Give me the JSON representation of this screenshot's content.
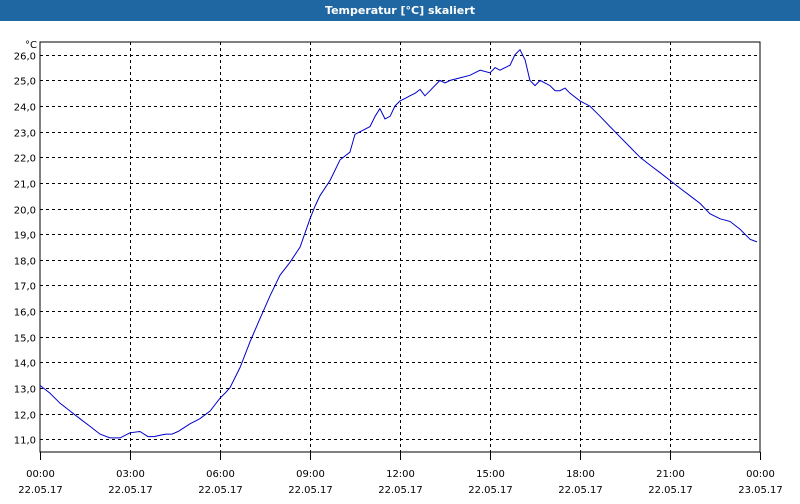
{
  "window": {
    "title": "Temperatur [°C] skaliert"
  },
  "chart_data": {
    "type": "line",
    "title": "Temperatur [°C] skaliert",
    "ylabel": "°C",
    "xlabel": "",
    "ylim": [
      10.5,
      26.5
    ],
    "y_ticks": [
      11.0,
      12.0,
      13.0,
      14.0,
      15.0,
      16.0,
      17.0,
      18.0,
      19.0,
      20.0,
      21.0,
      22.0,
      23.0,
      24.0,
      25.0,
      26.0
    ],
    "y_tick_labels": [
      "11,0",
      "12,0",
      "13,0",
      "14,0",
      "15,0",
      "16,0",
      "17,0",
      "18,0",
      "19,0",
      "20,0",
      "21,0",
      "22,0",
      "23,0",
      "24,0",
      "25,0",
      "26,0"
    ],
    "xlim": [
      0,
      24
    ],
    "x_ticks": [
      0,
      3,
      6,
      9,
      12,
      15,
      18,
      21,
      24
    ],
    "x_tick_labels": [
      [
        "00:00",
        "22.05.17"
      ],
      [
        "03:00",
        "22.05.17"
      ],
      [
        "06:00",
        "22.05.17"
      ],
      [
        "09:00",
        "22.05.17"
      ],
      [
        "12:00",
        "22.05.17"
      ],
      [
        "15:00",
        "22.05.17"
      ],
      [
        "18:00",
        "22.05.17"
      ],
      [
        "21:00",
        "22.05.17"
      ],
      [
        "00:00",
        "23.05.17"
      ]
    ],
    "grid": true,
    "line_color": "#0000cc",
    "series": [
      {
        "x": [
          0.0,
          0.33,
          0.67,
          1.0,
          1.33,
          1.67,
          2.0,
          2.33,
          2.67,
          3.0,
          3.33,
          3.6,
          3.8,
          4.0,
          4.2,
          4.4,
          4.6,
          4.8,
          5.0,
          5.33,
          5.67,
          6.0,
          6.17,
          6.33,
          6.67,
          7.0,
          7.33,
          7.67,
          8.0,
          8.33,
          8.67,
          9.0,
          9.17,
          9.33,
          9.67,
          10.0,
          10.33,
          10.5,
          10.67,
          11.0,
          11.17,
          11.33,
          11.5,
          11.67,
          11.83,
          12.0,
          12.17,
          12.33,
          12.5,
          12.67,
          12.83,
          13.0,
          13.33,
          13.5,
          13.67,
          14.0,
          14.33,
          14.67,
          15.0,
          15.17,
          15.33,
          15.67,
          15.83,
          16.0,
          16.17,
          16.33,
          16.5,
          16.67,
          17.0,
          17.17,
          17.33,
          17.5,
          17.67,
          18.0,
          18.33,
          18.67,
          19.0,
          19.33,
          19.67,
          20.0,
          20.33,
          20.67,
          21.0,
          21.33,
          21.67,
          22.0,
          22.33,
          22.67,
          23.0,
          23.33,
          23.67,
          23.9
        ],
        "y": [
          13.1,
          12.8,
          12.4,
          12.1,
          11.8,
          11.5,
          11.2,
          11.05,
          11.05,
          11.25,
          11.3,
          11.1,
          11.1,
          11.15,
          11.2,
          11.2,
          11.3,
          11.45,
          11.6,
          11.8,
          12.1,
          12.6,
          12.8,
          13.0,
          13.8,
          14.8,
          15.7,
          16.6,
          17.4,
          17.9,
          18.5,
          19.6,
          20.1,
          20.5,
          21.1,
          21.9,
          22.2,
          22.9,
          23.0,
          23.2,
          23.6,
          23.9,
          23.5,
          23.6,
          24.0,
          24.2,
          24.3,
          24.4,
          24.5,
          24.65,
          24.4,
          24.6,
          25.0,
          24.9,
          25.0,
          25.1,
          25.2,
          25.4,
          25.3,
          25.5,
          25.4,
          25.6,
          26.0,
          26.2,
          25.8,
          25.0,
          24.8,
          25.0,
          24.8,
          24.6,
          24.6,
          24.7,
          24.5,
          24.2,
          24.0,
          23.6,
          23.2,
          22.8,
          22.4,
          22.0,
          21.7,
          21.4,
          21.1,
          20.8,
          20.5,
          20.2,
          19.8,
          19.6,
          19.5,
          19.2,
          18.8,
          18.7
        ]
      }
    ]
  }
}
